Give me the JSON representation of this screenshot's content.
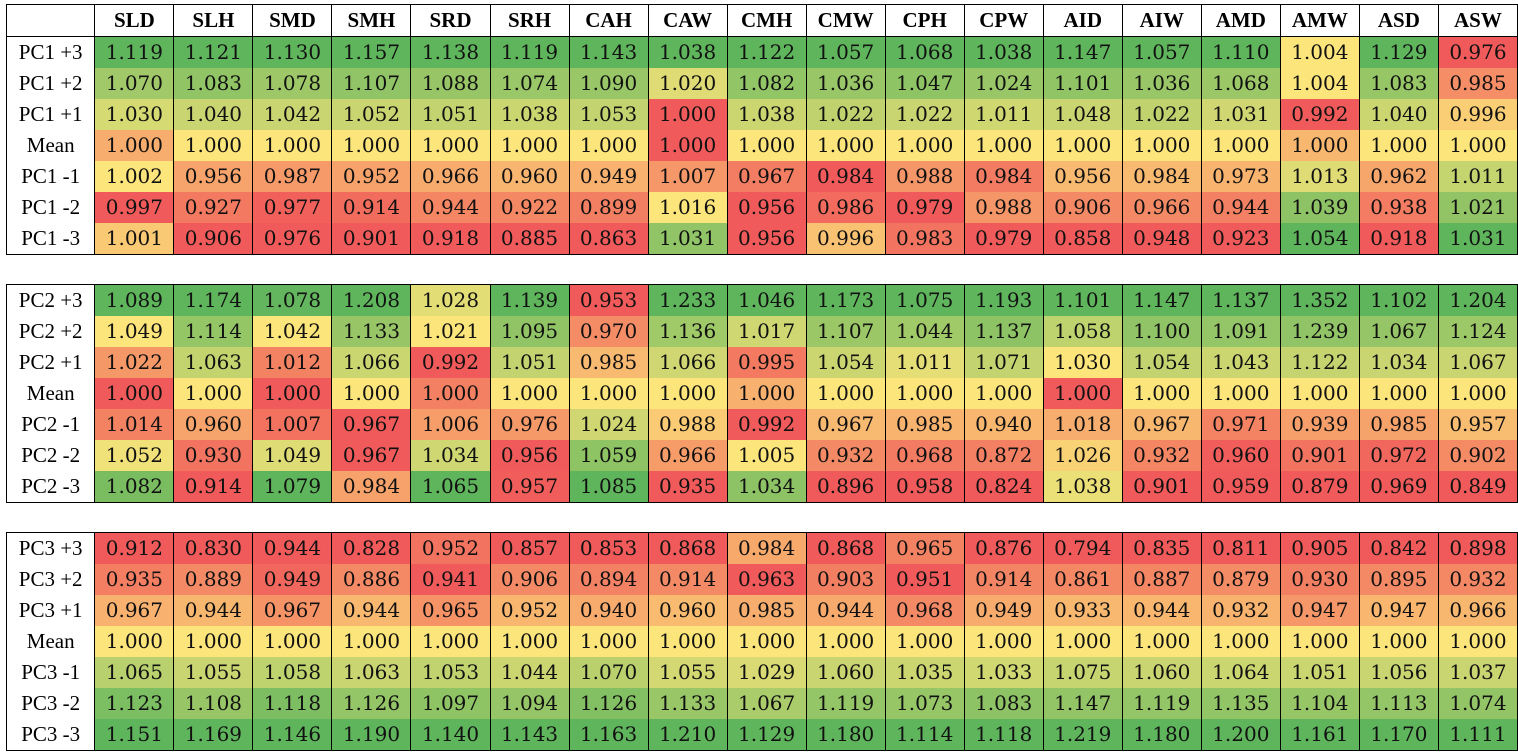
{
  "chart_data": {
    "type": "heatmap",
    "columns": [
      "SLD",
      "SLH",
      "SMD",
      "SMH",
      "SRD",
      "SRH",
      "CAH",
      "CAW",
      "CMH",
      "CMW",
      "CPH",
      "CPW",
      "AID",
      "AIW",
      "AMD",
      "AMW",
      "ASD",
      "ASW"
    ],
    "color_scale": {
      "low": "#f05a5a",
      "mid": "#fce57a",
      "high": "#5fb55c",
      "scope": "per column within each block"
    },
    "blocks": [
      {
        "rows": [
          {
            "label": "PC1 +3",
            "values": [
              1.119,
              1.121,
              1.13,
              1.157,
              1.138,
              1.119,
              1.143,
              1.038,
              1.122,
              1.057,
              1.068,
              1.038,
              1.147,
              1.057,
              1.11,
              1.004,
              1.129,
              0.976
            ]
          },
          {
            "label": "PC1 +2",
            "values": [
              1.07,
              1.083,
              1.078,
              1.107,
              1.088,
              1.074,
              1.09,
              1.02,
              1.082,
              1.036,
              1.047,
              1.024,
              1.101,
              1.036,
              1.068,
              1.004,
              1.083,
              0.985
            ]
          },
          {
            "label": "PC1 +1",
            "values": [
              1.03,
              1.04,
              1.042,
              1.052,
              1.051,
              1.038,
              1.053,
              1.0,
              1.038,
              1.022,
              1.022,
              1.011,
              1.048,
              1.022,
              1.031,
              0.992,
              1.04,
              0.996
            ]
          },
          {
            "label": "Mean",
            "values": [
              1.0,
              1.0,
              1.0,
              1.0,
              1.0,
              1.0,
              1.0,
              1.0,
              1.0,
              1.0,
              1.0,
              1.0,
              1.0,
              1.0,
              1.0,
              1.0,
              1.0,
              1.0
            ]
          },
          {
            "label": "PC1 -1",
            "values": [
              1.002,
              0.956,
              0.987,
              0.952,
              0.966,
              0.96,
              0.949,
              1.007,
              0.967,
              0.984,
              0.988,
              0.984,
              0.956,
              0.984,
              0.973,
              1.013,
              0.962,
              1.011
            ]
          },
          {
            "label": "PC1 -2",
            "values": [
              0.997,
              0.927,
              0.977,
              0.914,
              0.944,
              0.922,
              0.899,
              1.016,
              0.956,
              0.986,
              0.979,
              0.988,
              0.906,
              0.966,
              0.944,
              1.039,
              0.938,
              1.021
            ]
          },
          {
            "label": "PC1 -3",
            "values": [
              1.001,
              0.906,
              0.976,
              0.901,
              0.918,
              0.885,
              0.863,
              1.031,
              0.956,
              0.996,
              0.983,
              0.979,
              0.858,
              0.948,
              0.923,
              1.054,
              0.918,
              1.031
            ]
          }
        ]
      },
      {
        "rows": [
          {
            "label": "PC2 +3",
            "values": [
              1.089,
              1.174,
              1.078,
              1.208,
              1.028,
              1.139,
              0.953,
              1.233,
              1.046,
              1.173,
              1.075,
              1.193,
              1.101,
              1.147,
              1.137,
              1.352,
              1.102,
              1.204
            ]
          },
          {
            "label": "PC2 +2",
            "values": [
              1.049,
              1.114,
              1.042,
              1.133,
              1.021,
              1.095,
              0.97,
              1.136,
              1.017,
              1.107,
              1.044,
              1.137,
              1.058,
              1.1,
              1.091,
              1.239,
              1.067,
              1.124
            ]
          },
          {
            "label": "PC2 +1",
            "values": [
              1.022,
              1.063,
              1.012,
              1.066,
              0.992,
              1.051,
              0.985,
              1.066,
              0.995,
              1.054,
              1.011,
              1.071,
              1.03,
              1.054,
              1.043,
              1.122,
              1.034,
              1.067
            ]
          },
          {
            "label": "Mean",
            "values": [
              1.0,
              1.0,
              1.0,
              1.0,
              1.0,
              1.0,
              1.0,
              1.0,
              1.0,
              1.0,
              1.0,
              1.0,
              1.0,
              1.0,
              1.0,
              1.0,
              1.0,
              1.0
            ]
          },
          {
            "label": "PC2 -1",
            "values": [
              1.014,
              0.96,
              1.007,
              0.967,
              1.006,
              0.976,
              1.024,
              0.988,
              0.992,
              0.967,
              0.985,
              0.94,
              1.018,
              0.967,
              0.971,
              0.939,
              0.985,
              0.957
            ]
          },
          {
            "label": "PC2 -2",
            "values": [
              1.052,
              0.93,
              1.049,
              0.967,
              1.034,
              0.956,
              1.059,
              0.966,
              1.005,
              0.932,
              0.968,
              0.872,
              1.026,
              0.932,
              0.96,
              0.901,
              0.972,
              0.902
            ]
          },
          {
            "label": "PC2 -3",
            "values": [
              1.082,
              0.914,
              1.079,
              0.984,
              1.065,
              0.957,
              1.085,
              0.935,
              1.034,
              0.896,
              0.958,
              0.824,
              1.038,
              0.901,
              0.959,
              0.879,
              0.969,
              0.849
            ]
          }
        ]
      },
      {
        "rows": [
          {
            "label": "PC3 +3",
            "values": [
              0.912,
              0.83,
              0.944,
              0.828,
              0.952,
              0.857,
              0.853,
              0.868,
              0.984,
              0.868,
              0.965,
              0.876,
              0.794,
              0.835,
              0.811,
              0.905,
              0.842,
              0.898
            ]
          },
          {
            "label": "PC3 +2",
            "values": [
              0.935,
              0.889,
              0.949,
              0.886,
              0.941,
              0.906,
              0.894,
              0.914,
              0.963,
              0.903,
              0.951,
              0.914,
              0.861,
              0.887,
              0.879,
              0.93,
              0.895,
              0.932
            ]
          },
          {
            "label": "PC3 +1",
            "values": [
              0.967,
              0.944,
              0.967,
              0.944,
              0.965,
              0.952,
              0.94,
              0.96,
              0.985,
              0.944,
              0.968,
              0.949,
              0.933,
              0.944,
              0.932,
              0.947,
              0.947,
              0.966
            ]
          },
          {
            "label": "Mean",
            "values": [
              1.0,
              1.0,
              1.0,
              1.0,
              1.0,
              1.0,
              1.0,
              1.0,
              1.0,
              1.0,
              1.0,
              1.0,
              1.0,
              1.0,
              1.0,
              1.0,
              1.0,
              1.0
            ]
          },
          {
            "label": "PC3 -1",
            "values": [
              1.065,
              1.055,
              1.058,
              1.063,
              1.053,
              1.044,
              1.07,
              1.055,
              1.029,
              1.06,
              1.035,
              1.033,
              1.075,
              1.06,
              1.064,
              1.051,
              1.056,
              1.037
            ]
          },
          {
            "label": "PC3 -2",
            "values": [
              1.123,
              1.108,
              1.118,
              1.126,
              1.097,
              1.094,
              1.126,
              1.133,
              1.067,
              1.119,
              1.073,
              1.083,
              1.147,
              1.119,
              1.135,
              1.104,
              1.113,
              1.074
            ]
          },
          {
            "label": "PC3 -3",
            "values": [
              1.151,
              1.169,
              1.146,
              1.19,
              1.14,
              1.143,
              1.163,
              1.21,
              1.129,
              1.18,
              1.114,
              1.118,
              1.219,
              1.18,
              1.2,
              1.161,
              1.17,
              1.111
            ]
          }
        ]
      }
    ]
  }
}
